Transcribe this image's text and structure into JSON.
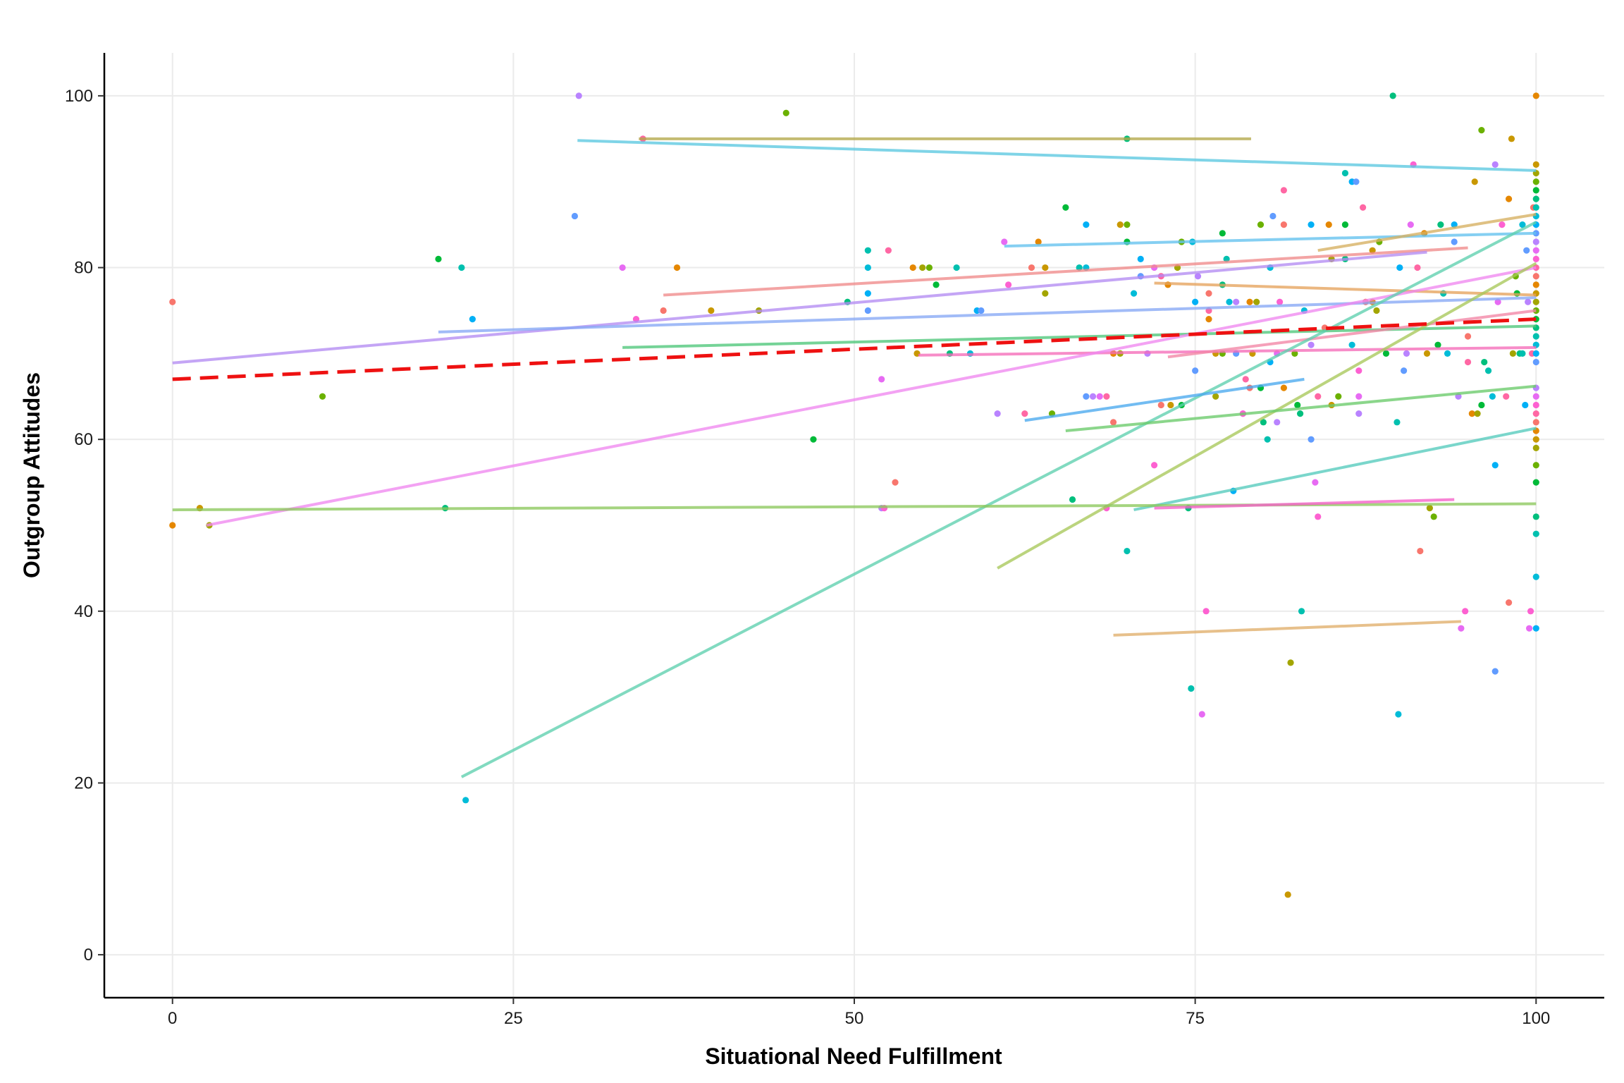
{
  "chart_data": {
    "type": "scatter",
    "title": "",
    "xlabel": "Situational Need Fulfillment",
    "ylabel": "Outgroup Attitudes",
    "xlim": [
      -5,
      105
    ],
    "ylim": [
      -5,
      105
    ],
    "xticks": [
      0,
      25,
      50,
      75,
      100
    ],
    "yticks": [
      0,
      20,
      40,
      60,
      80,
      100
    ],
    "grid": true,
    "legend": "none",
    "overall_fit": {
      "style": "dashed",
      "color": "#ee1111",
      "x": [
        0,
        100
      ],
      "y": [
        67,
        74
      ]
    },
    "group_fits": [
      {
        "x": [
          29.7,
          100
        ],
        "y": [
          94.8,
          91.3
        ],
        "color": "#5bc8e0"
      },
      {
        "x": [
          34.2,
          79.1
        ],
        "y": [
          95.0,
          95.0
        ],
        "color": "#b3a84a"
      },
      {
        "x": [
          61.0,
          100
        ],
        "y": [
          82.5,
          84.0
        ],
        "color": "#63c1ee"
      },
      {
        "x": [
          84.0,
          100
        ],
        "y": [
          82.0,
          86.2
        ],
        "color": "#d6b060"
      },
      {
        "x": [
          36.0,
          95.0
        ],
        "y": [
          76.8,
          82.3
        ],
        "color": "#f08a8a"
      },
      {
        "x": [
          0,
          92.0
        ],
        "y": [
          68.9,
          81.8
        ],
        "color": "#b38cf2"
      },
      {
        "x": [
          19.5,
          100
        ],
        "y": [
          72.5,
          76.5
        ],
        "color": "#86a8f5"
      },
      {
        "x": [
          72.0,
          100
        ],
        "y": [
          78.2,
          76.8
        ],
        "color": "#e6a35c"
      },
      {
        "x": [
          33.0,
          100
        ],
        "y": [
          70.7,
          73.2
        ],
        "color": "#4ec77a"
      },
      {
        "x": [
          54.7,
          100
        ],
        "y": [
          69.8,
          70.7
        ],
        "color": "#f56bb8"
      },
      {
        "x": [
          73.0,
          100
        ],
        "y": [
          69.6,
          75.0
        ],
        "color": "#f285a5"
      },
      {
        "x": [
          2.5,
          100
        ],
        "y": [
          50.0,
          80.0
        ],
        "color": "#ef88ef"
      },
      {
        "x": [
          21.2,
          100
        ],
        "y": [
          20.7,
          85.3
        ],
        "color": "#5ecfae"
      },
      {
        "x": [
          60.5,
          100
        ],
        "y": [
          45.0,
          80.5
        ],
        "color": "#a8c85a"
      },
      {
        "x": [
          62.5,
          83.0
        ],
        "y": [
          62.2,
          67.0
        ],
        "color": "#4aa9ee"
      },
      {
        "x": [
          65.5,
          100
        ],
        "y": [
          61.0,
          66.2
        ],
        "color": "#6acb6a"
      },
      {
        "x": [
          70.5,
          100
        ],
        "y": [
          51.8,
          61.3
        ],
        "color": "#55cbbc"
      },
      {
        "x": [
          0,
          100
        ],
        "y": [
          51.8,
          52.5
        ],
        "color": "#8cc85c"
      },
      {
        "x": [
          72.0,
          94.0
        ],
        "y": [
          52.0,
          53.0
        ],
        "color": "#f560c8"
      },
      {
        "x": [
          69.0,
          94.5
        ],
        "y": [
          37.2,
          38.8
        ],
        "color": "#e0ae6a"
      }
    ],
    "point_colors": [
      "#f8766d",
      "#e58700",
      "#c99800",
      "#a3a500",
      "#6bb100",
      "#00ba38",
      "#00bf7d",
      "#00c0af",
      "#00bcd8",
      "#00b0f6",
      "#619cff",
      "#b983ff",
      "#e76bf3",
      "#fd61d1",
      "#ff67a4"
    ],
    "points": [
      [
        0,
        76
      ],
      [
        0,
        50
      ],
      [
        2,
        52
      ],
      [
        2.7,
        50
      ],
      [
        11,
        65
      ],
      [
        19.5,
        81
      ],
      [
        20,
        52
      ],
      [
        21.2,
        80
      ],
      [
        21.5,
        18
      ],
      [
        22,
        74
      ],
      [
        29.5,
        86
      ],
      [
        29.8,
        100
      ],
      [
        33,
        80
      ],
      [
        34,
        74
      ],
      [
        34.5,
        95
      ],
      [
        36,
        75
      ],
      [
        37,
        80
      ],
      [
        39.5,
        75
      ],
      [
        43,
        75
      ],
      [
        45,
        98
      ],
      [
        47,
        60
      ],
      [
        49.5,
        76
      ],
      [
        51,
        82
      ],
      [
        51,
        80
      ],
      [
        51,
        77
      ],
      [
        51,
        75
      ],
      [
        52,
        52
      ],
      [
        52,
        67
      ],
      [
        52.2,
        52
      ],
      [
        52.5,
        82
      ],
      [
        53,
        55
      ],
      [
        54.3,
        80
      ],
      [
        54.6,
        70
      ],
      [
        55,
        80
      ],
      [
        55.5,
        80
      ],
      [
        56,
        78
      ],
      [
        57,
        70
      ],
      [
        57.5,
        80
      ],
      [
        58.5,
        70
      ],
      [
        59,
        75
      ],
      [
        59.3,
        75
      ],
      [
        60.5,
        63
      ],
      [
        61,
        83
      ],
      [
        61.3,
        78
      ],
      [
        62.5,
        63
      ],
      [
        63,
        80
      ],
      [
        63.5,
        83
      ],
      [
        64,
        80
      ],
      [
        64,
        77
      ],
      [
        64.5,
        63
      ],
      [
        65.5,
        87
      ],
      [
        66,
        53
      ],
      [
        66.5,
        80
      ],
      [
        67,
        80
      ],
      [
        67,
        85
      ],
      [
        67,
        65
      ],
      [
        67.5,
        65
      ],
      [
        68,
        65
      ],
      [
        68.5,
        52
      ],
      [
        68.5,
        65
      ],
      [
        69,
        62
      ],
      [
        69,
        70
      ],
      [
        69.5,
        85
      ],
      [
        69.5,
        70
      ],
      [
        70,
        85
      ],
      [
        70,
        83
      ],
      [
        70,
        95
      ],
      [
        70,
        47
      ],
      [
        70.5,
        77
      ],
      [
        71,
        81
      ],
      [
        71,
        79
      ],
      [
        71.5,
        70
      ],
      [
        72,
        80
      ],
      [
        72,
        57
      ],
      [
        72.5,
        79
      ],
      [
        72.5,
        64
      ],
      [
        73,
        78
      ],
      [
        73.2,
        64
      ],
      [
        73.7,
        80
      ],
      [
        74,
        83
      ],
      [
        74,
        64
      ],
      [
        74.5,
        52
      ],
      [
        74.7,
        31
      ],
      [
        74.8,
        83
      ],
      [
        75,
        76
      ],
      [
        75,
        68
      ],
      [
        75.2,
        79
      ],
      [
        75.5,
        28
      ],
      [
        75.8,
        40
      ],
      [
        76,
        75
      ],
      [
        76,
        77
      ],
      [
        76,
        74
      ],
      [
        76.5,
        70
      ],
      [
        76.5,
        65
      ],
      [
        77,
        70
      ],
      [
        77,
        84
      ],
      [
        77,
        78
      ],
      [
        77.3,
        81
      ],
      [
        77.5,
        76
      ],
      [
        77.8,
        54
      ],
      [
        78,
        70
      ],
      [
        78,
        76
      ],
      [
        78.5,
        63
      ],
      [
        78.5,
        63
      ],
      [
        78.7,
        67
      ],
      [
        79,
        66
      ],
      [
        79,
        76
      ],
      [
        79.2,
        70
      ],
      [
        79.5,
        76
      ],
      [
        79.8,
        85
      ],
      [
        79.8,
        66
      ],
      [
        80,
        62
      ],
      [
        80.3,
        60
      ],
      [
        80.5,
        80
      ],
      [
        80.5,
        69
      ],
      [
        80.7,
        86
      ],
      [
        81,
        62
      ],
      [
        81,
        70
      ],
      [
        81.2,
        76
      ],
      [
        81.5,
        89
      ],
      [
        81.5,
        85
      ],
      [
        81.5,
        66
      ],
      [
        81.8,
        7
      ],
      [
        82,
        34
      ],
      [
        82.3,
        70
      ],
      [
        82.5,
        64
      ],
      [
        82.7,
        63
      ],
      [
        82.8,
        40
      ],
      [
        83,
        75
      ],
      [
        83.5,
        85
      ],
      [
        83.5,
        60
      ],
      [
        83.5,
        71
      ],
      [
        83.8,
        55
      ],
      [
        84,
        51
      ],
      [
        84,
        65
      ],
      [
        84.5,
        73
      ],
      [
        84.8,
        85
      ],
      [
        85,
        64
      ],
      [
        85,
        81
      ],
      [
        85.5,
        65
      ],
      [
        86,
        85
      ],
      [
        86,
        81
      ],
      [
        86,
        91
      ],
      [
        86.5,
        71
      ],
      [
        86.5,
        90
      ],
      [
        86.8,
        90
      ],
      [
        87,
        63
      ],
      [
        87,
        65
      ],
      [
        87,
        68
      ],
      [
        87.3,
        87
      ],
      [
        87.5,
        76
      ],
      [
        88,
        76
      ],
      [
        88,
        82
      ],
      [
        88.3,
        75
      ],
      [
        88.5,
        83
      ],
      [
        89,
        70
      ],
      [
        89.5,
        100
      ],
      [
        89.8,
        62
      ],
      [
        89.9,
        28
      ],
      [
        90,
        80
      ],
      [
        90.3,
        68
      ],
      [
        90.5,
        70
      ],
      [
        90.8,
        85
      ],
      [
        91,
        92
      ],
      [
        91.3,
        80
      ],
      [
        91.5,
        47
      ],
      [
        91.8,
        84
      ],
      [
        92,
        70
      ],
      [
        92.2,
        52
      ],
      [
        92.5,
        51
      ],
      [
        92.8,
        71
      ],
      [
        93,
        85
      ],
      [
        93.2,
        77
      ],
      [
        93.5,
        70
      ],
      [
        94,
        85
      ],
      [
        94,
        83
      ],
      [
        94.3,
        65
      ],
      [
        94.5,
        38
      ],
      [
        94.8,
        40
      ],
      [
        95,
        69
      ],
      [
        95,
        72
      ],
      [
        95.3,
        63
      ],
      [
        95.5,
        90
      ],
      [
        95.7,
        63
      ],
      [
        96,
        96
      ],
      [
        96,
        64
      ],
      [
        96.2,
        69
      ],
      [
        96.5,
        68
      ],
      [
        96.8,
        65
      ],
      [
        97,
        57
      ],
      [
        97,
        33
      ],
      [
        97,
        92
      ],
      [
        97.2,
        76
      ],
      [
        97.5,
        85
      ],
      [
        97.8,
        65
      ],
      [
        98,
        41
      ],
      [
        98,
        88
      ],
      [
        98.2,
        95
      ],
      [
        98.3,
        70
      ],
      [
        98.5,
        79
      ],
      [
        98.6,
        77
      ],
      [
        98.8,
        70
      ],
      [
        99,
        70
      ],
      [
        99,
        85
      ],
      [
        99.2,
        64
      ],
      [
        99.3,
        82
      ],
      [
        99.4,
        76
      ],
      [
        99.5,
        38
      ],
      [
        99.6,
        40
      ],
      [
        99.7,
        70
      ],
      [
        99.8,
        87
      ],
      [
        100,
        100
      ],
      [
        100,
        92
      ],
      [
        100,
        91
      ],
      [
        100,
        90
      ],
      [
        100,
        89
      ],
      [
        100,
        88
      ],
      [
        100,
        87
      ],
      [
        100,
        86
      ],
      [
        100,
        85
      ],
      [
        100,
        84
      ],
      [
        100,
        83
      ],
      [
        100,
        82
      ],
      [
        100,
        81
      ],
      [
        100,
        80
      ],
      [
        100,
        79
      ],
      [
        100,
        78
      ],
      [
        100,
        77
      ],
      [
        100,
        76
      ],
      [
        100,
        75
      ],
      [
        100,
        74
      ],
      [
        100,
        73
      ],
      [
        100,
        72
      ],
      [
        100,
        71
      ],
      [
        100,
        70
      ],
      [
        100,
        69
      ],
      [
        100,
        66
      ],
      [
        100,
        65
      ],
      [
        100,
        64
      ],
      [
        100,
        63
      ],
      [
        100,
        62
      ],
      [
        100,
        61
      ],
      [
        100,
        60
      ],
      [
        100,
        59
      ],
      [
        100,
        57
      ],
      [
        100,
        55
      ],
      [
        100,
        51
      ],
      [
        100,
        49
      ],
      [
        100,
        44
      ],
      [
        100,
        38
      ]
    ]
  }
}
